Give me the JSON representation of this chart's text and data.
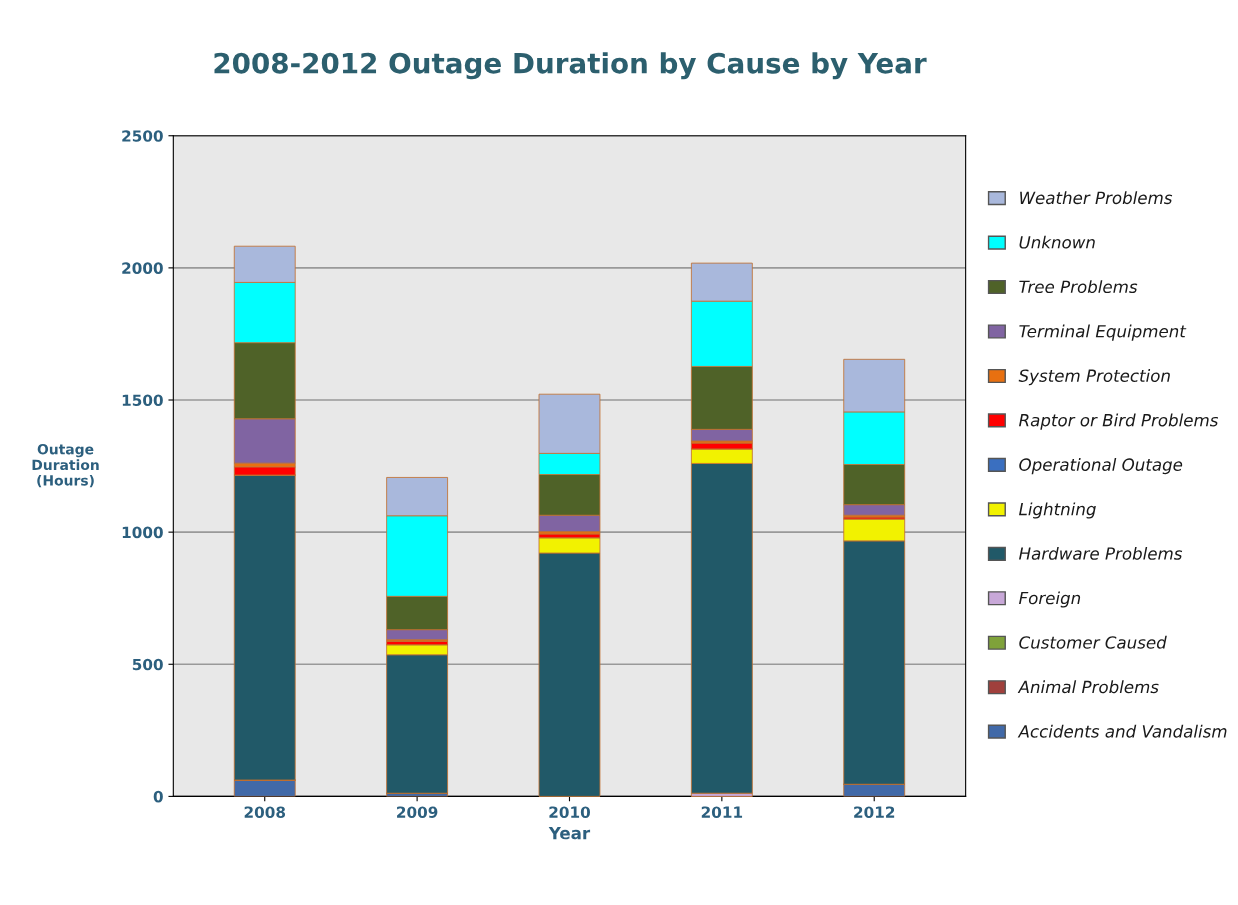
{
  "chart_data": {
    "type": "bar",
    "stacked": true,
    "title": "2008-2012 Outage Duration by Cause by Year",
    "xlabel": "Year",
    "ylabel": "Outage\nDuration\n(Hours)",
    "categories": [
      "2008",
      "2009",
      "2010",
      "2011",
      "2012"
    ],
    "ylim": [
      0,
      2500
    ],
    "yticks": [
      0,
      500,
      1000,
      1500,
      2000,
      2500
    ],
    "grid": "y",
    "legend": "right",
    "series": [
      {
        "name": "Accidents and Vandalism",
        "color": "#4169a8",
        "values": [
          62,
          12,
          null,
          null,
          46
        ]
      },
      {
        "name": "Animal Problems",
        "color": "#a0403c",
        "values": [
          0,
          null,
          0,
          0,
          null
        ]
      },
      {
        "name": "Customer Caused",
        "color": "#7fa23a",
        "values": [
          0,
          0,
          0,
          0,
          0
        ]
      },
      {
        "name": "Foreign",
        "color": "#c8a8d8",
        "values": [
          0,
          0,
          0,
          12,
          0
        ]
      },
      {
        "name": "Hardware Problems",
        "color": "#215968",
        "values": [
          1154,
          524,
          921,
          1248,
          921
        ]
      },
      {
        "name": "Lightning",
        "color": "#f2f200",
        "values": [
          0,
          38,
          58,
          55,
          83
        ]
      },
      {
        "name": "Operational Outage",
        "color": "#3a6fc0",
        "values": [
          0,
          0,
          0,
          0,
          0
        ]
      },
      {
        "name": "Raptor or Bird Problems",
        "color": "#ff0000",
        "values": [
          31,
          13,
          14,
          22,
          7
        ]
      },
      {
        "name": "System Protection",
        "color": "#e87010",
        "values": [
          14,
          6,
          9,
          8,
          7
        ]
      },
      {
        "name": "Terminal Equipment",
        "color": "#8064a2",
        "values": [
          168,
          38,
          62,
          44,
          40
        ]
      },
      {
        "name": "Tree Problems",
        "color": "#4f6228",
        "values": [
          288,
          126,
          154,
          238,
          152
        ]
      },
      {
        "name": "Unknown",
        "color": "#00ffff",
        "values": [
          228,
          305,
          80,
          247,
          199
        ]
      },
      {
        "name": "Weather Problems",
        "color": "#a9b8dc",
        "values": [
          137,
          145,
          224,
          144,
          199
        ]
      }
    ]
  }
}
